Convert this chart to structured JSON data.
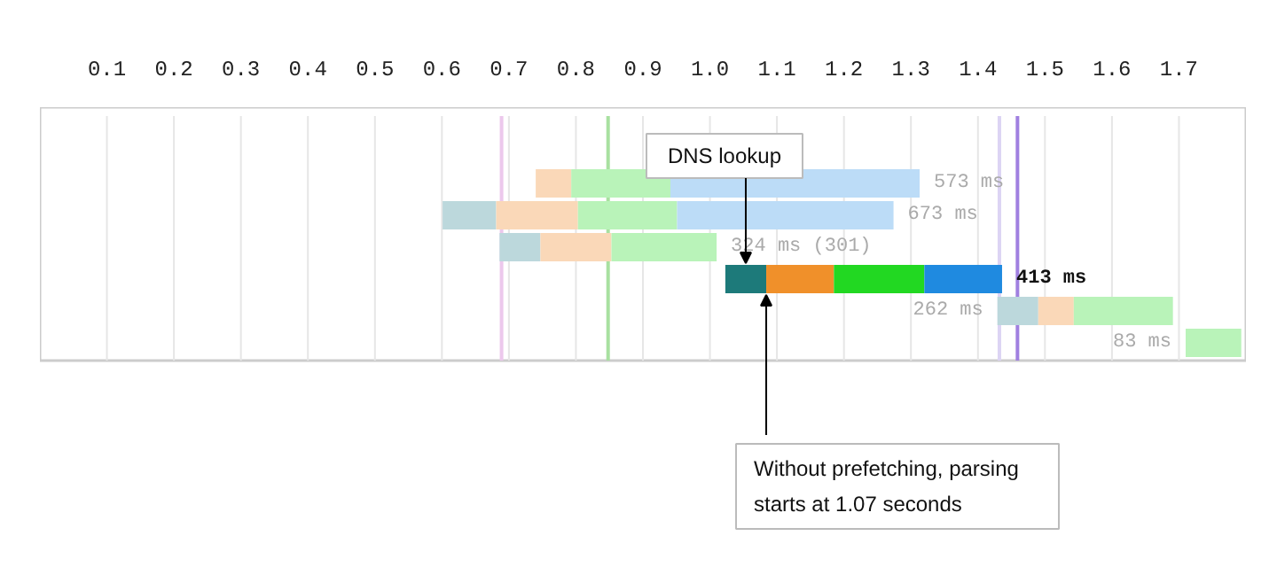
{
  "chart_data": {
    "type": "bar",
    "orientation": "horizontal",
    "categories": [
      null,
      null,
      null,
      null,
      null,
      null,
      null
    ],
    "series": [
      {
        "colors": [
          "#bcd8dc",
          "#bcd8dc",
          "#bcd8dc",
          "#bcd8dc",
          "#1d7a7a",
          "#bcd8dc",
          "#bcd8dc"
        ],
        "base": [
          null,
          null,
          0.601,
          0.686,
          1.023,
          1.429,
          null
        ],
        "values": [
          null,
          null,
          0.08,
          0.061,
          0.061,
          0.061,
          null
        ]
      },
      {
        "colors": [
          "#fad8b8",
          "#fad8b8",
          "#fad8b8",
          "#fad8b8",
          "#f0902a",
          "#fad8b8",
          "#fad8b8"
        ],
        "base": [
          null,
          0.74,
          0.681,
          0.747,
          1.084,
          1.49,
          null
        ],
        "values": [
          null,
          0.053,
          0.122,
          0.106,
          0.101,
          0.053,
          null
        ]
      },
      {
        "colors": [
          "#b9f3b9",
          "#b9f3b9",
          "#b9f3b9",
          "#b9f3b9",
          "#22d822",
          "#b9f3b9",
          "#b9f3b9"
        ],
        "base": [
          null,
          0.793,
          0.803,
          0.853,
          1.185,
          1.543,
          1.71
        ],
        "values": [
          null,
          0.148,
          0.148,
          0.157,
          0.135,
          0.148,
          0.083
        ]
      },
      {
        "colors": [
          "#bcdcf7",
          "#bcdcf7",
          "#bcdcf7",
          "#bcdcf7",
          "#1f8ae0",
          "#bcdcf7",
          "#bcdcf7"
        ],
        "base": [
          null,
          0.941,
          0.951,
          null,
          1.32,
          null,
          null
        ],
        "values": [
          null,
          0.372,
          0.323,
          null,
          0.116,
          null,
          null
        ]
      }
    ],
    "xlim": [
      0,
      1.8
    ],
    "xticks": [
      0.1,
      0.2,
      0.3,
      0.4,
      0.5,
      0.6,
      0.7,
      0.8,
      0.9,
      {
        "value": 1,
        "label": "1.0"
      },
      1.1,
      1.2,
      1.3,
      1.4,
      1.5,
      1.6,
      1.7
    ],
    "grid": "x",
    "ref_lines": [
      {
        "axis": "x",
        "value": 0.689,
        "color": "#ecc8ec"
      },
      {
        "axis": "x",
        "value": 0.848,
        "color": "#a8e0a0"
      },
      {
        "axis": "x",
        "value": 1.432,
        "color": "#dcd4f4"
      },
      {
        "axis": "x",
        "value": 1.459,
        "color": "#a080e0"
      }
    ],
    "annotations": [
      {
        "text": "573 ms",
        "x": 1.313
      },
      {
        "text": "673 ms",
        "x": 1.274
      },
      {
        "text": "324 ms (301)",
        "x": 1.01
      },
      {
        "text": "413 ms",
        "x": 1.436
      },
      {
        "text": "262 ms",
        "x": 1.429
      },
      {
        "text": "83 ms",
        "x": 1.71
      },
      "DNS lookup",
      "Without prefetching, parsing starts at 1.07 seconds"
    ]
  }
}
